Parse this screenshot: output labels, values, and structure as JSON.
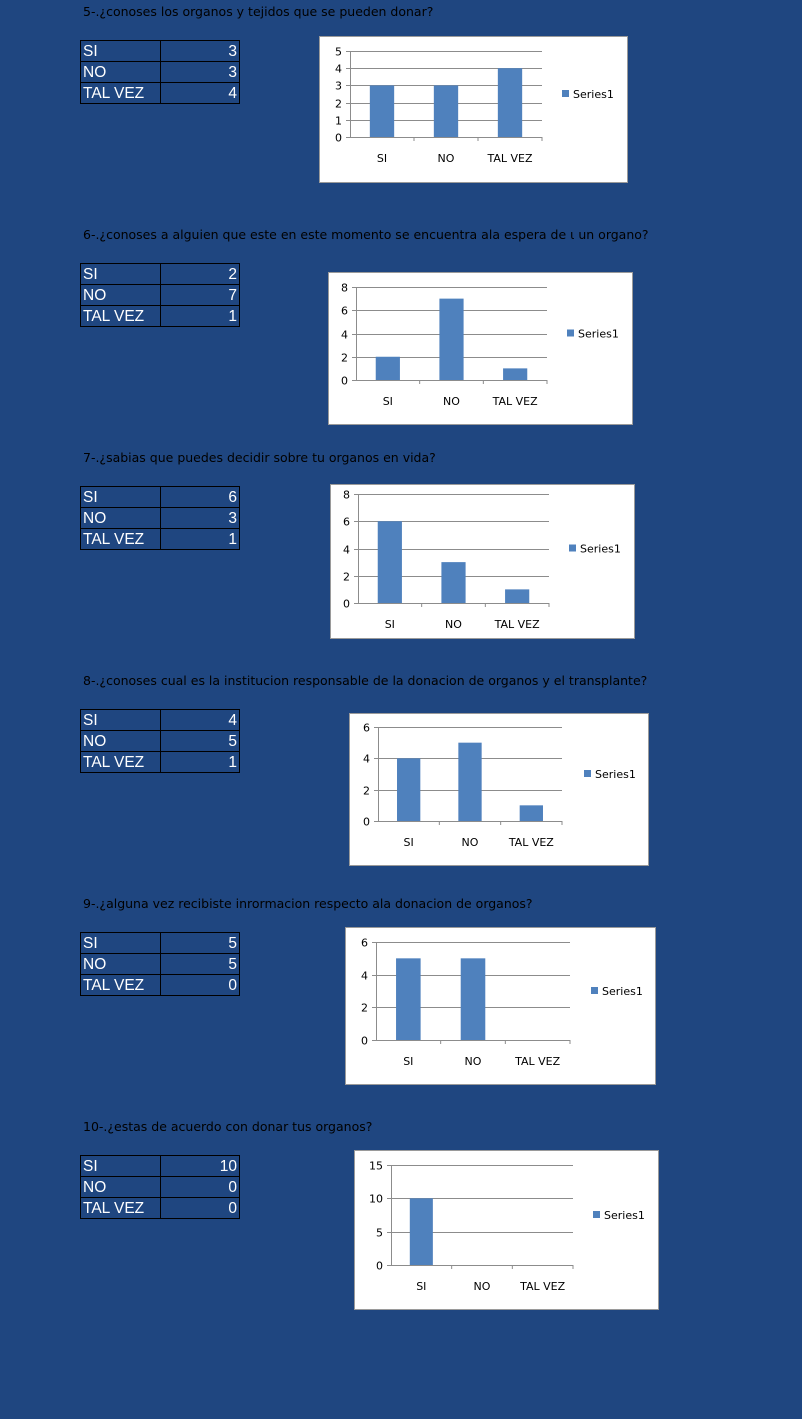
{
  "colors": {
    "background": "#1f4680",
    "bar": "#4f81bd",
    "grid": "#8c8c8c"
  },
  "blocks": [
    {
      "title": "5-.¿conoses los organos y tejidos que se pueden donar?",
      "table": [
        [
          "SI",
          "3"
        ],
        [
          "NO",
          "3"
        ],
        [
          "TAL VEZ",
          "4"
        ]
      ],
      "chart_data": {
        "type": "bar",
        "categories": [
          "SI",
          "NO",
          "TAL VEZ"
        ],
        "series": [
          {
            "name": "Series1",
            "values": [
              3,
              3,
              4
            ]
          }
        ],
        "ylim": [
          0,
          5
        ],
        "yticks": [
          0,
          1,
          2,
          3,
          4,
          5
        ],
        "grid": true,
        "legend": "right"
      }
    },
    {
      "title": "6-.¿conoses a alguien que este en este momento se encuentra ala espera de ι un organo?",
      "table": [
        [
          "SI",
          "2"
        ],
        [
          "NO",
          "7"
        ],
        [
          "TAL VEZ",
          "1"
        ]
      ],
      "chart_data": {
        "type": "bar",
        "categories": [
          "SI",
          "NO",
          "TAL VEZ"
        ],
        "series": [
          {
            "name": "Series1",
            "values": [
              2,
              7,
              1
            ]
          }
        ],
        "ylim": [
          0,
          8
        ],
        "yticks": [
          0,
          2,
          4,
          6,
          8
        ],
        "grid": true,
        "legend": "right"
      }
    },
    {
      "title": "7-.¿sabias que puedes decidir sobre tu organos en vida?",
      "table": [
        [
          "SI",
          "6"
        ],
        [
          "NO",
          "3"
        ],
        [
          "TAL VEZ",
          "1"
        ]
      ],
      "chart_data": {
        "type": "bar",
        "categories": [
          "SI",
          "NO",
          "TAL VEZ"
        ],
        "series": [
          {
            "name": "Series1",
            "values": [
              6,
              3,
              1
            ]
          }
        ],
        "ylim": [
          0,
          8
        ],
        "yticks": [
          0,
          2,
          4,
          6,
          8
        ],
        "grid": true,
        "legend": "right"
      }
    },
    {
      "title": "8-.¿conoses cual es la institucion responsable de la donacion de organos y el transplante?",
      "table": [
        [
          "SI",
          "4"
        ],
        [
          "NO",
          "5"
        ],
        [
          "TAL VEZ",
          "1"
        ]
      ],
      "chart_data": {
        "type": "bar",
        "categories": [
          "SI",
          "NO",
          "TAL VEZ"
        ],
        "series": [
          {
            "name": "Series1",
            "values": [
              4,
              5,
              1
            ]
          }
        ],
        "ylim": [
          0,
          6
        ],
        "yticks": [
          0,
          2,
          4,
          6
        ],
        "grid": true,
        "legend": "right"
      }
    },
    {
      "title": "9-.¿alguna vez recibiste inrormacion respecto ala donacion de organos?",
      "table": [
        [
          "SI",
          "5"
        ],
        [
          "NO",
          "5"
        ],
        [
          "TAL VEZ",
          "0"
        ]
      ],
      "chart_data": {
        "type": "bar",
        "categories": [
          "SI",
          "NO",
          "TAL VEZ"
        ],
        "series": [
          {
            "name": "Series1",
            "values": [
              5,
              5,
              0
            ]
          }
        ],
        "ylim": [
          0,
          6
        ],
        "yticks": [
          0,
          2,
          4,
          6
        ],
        "grid": true,
        "legend": "right"
      }
    },
    {
      "title": "10-.¿estas de acuerdo con donar tus organos?",
      "table": [
        [
          "SI",
          "10"
        ],
        [
          "NO",
          "0"
        ],
        [
          "TAL VEZ",
          "0"
        ]
      ],
      "chart_data": {
        "type": "bar",
        "categories": [
          "SI",
          "NO",
          "TAL VEZ"
        ],
        "series": [
          {
            "name": "Series1",
            "values": [
              10,
              0,
              0
            ]
          }
        ],
        "ylim": [
          0,
          15
        ],
        "yticks": [
          0,
          5,
          10,
          15
        ],
        "grid": true,
        "legend": "right"
      }
    }
  ]
}
